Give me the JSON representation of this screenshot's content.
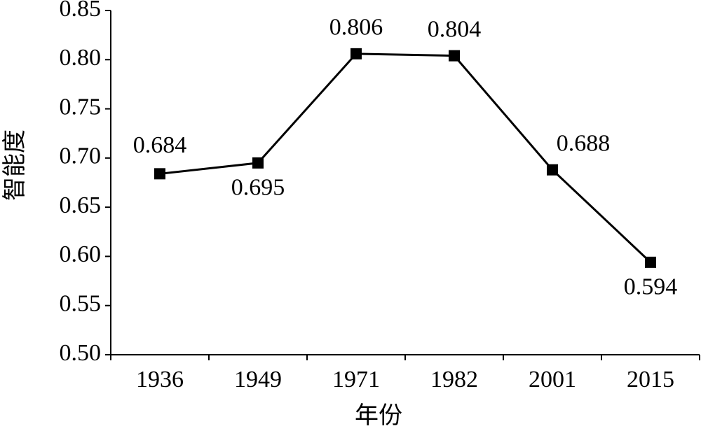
{
  "chart_data": {
    "type": "line",
    "x_label": "年份",
    "y_label": "智能度",
    "categories": [
      "1936",
      "1949",
      "1971",
      "1982",
      "2001",
      "2015"
    ],
    "series": [
      {
        "name": null,
        "color": "#000000",
        "values": [
          0.684,
          0.695,
          0.806,
          0.804,
          0.688,
          0.594
        ]
      }
    ],
    "ylim": [
      0.5,
      0.85
    ],
    "yticks": [
      {
        "value": 0.5,
        "label": "0.50"
      },
      0.55,
      {
        "value": 0.6,
        "label": "0.60"
      },
      0.65,
      {
        "value": 0.7,
        "label": "0.70"
      },
      0.75,
      {
        "value": 0.8,
        "label": "0.80"
      },
      0.85
    ],
    "grid": false
  }
}
